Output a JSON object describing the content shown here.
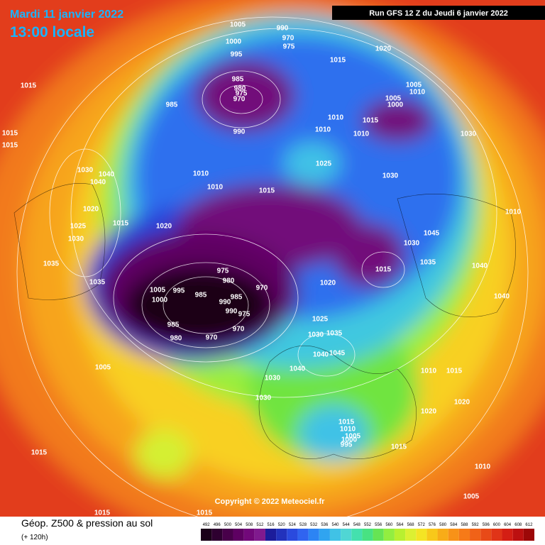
{
  "header": {
    "date": "Mardi 11 janvier 2022",
    "time": "13:00 locale",
    "run": "Run GFS 12 Z du Jeudi 6 janvier 2022"
  },
  "copyright": "Copyright © 2022 Meteociel.fr",
  "legend": {
    "title": "Géop. Z500 & pression au sol",
    "subtitle": "(+ 120h)",
    "ticks": [
      492,
      496,
      500,
      504,
      508,
      512,
      516,
      520,
      524,
      528,
      532,
      536,
      540,
      544,
      548,
      552,
      556,
      560,
      564,
      568,
      572,
      576,
      580,
      584,
      588,
      592,
      596,
      600,
      604,
      608,
      612
    ],
    "colors": [
      "#1a0018",
      "#2e0030",
      "#48004a",
      "#5e0062",
      "#72087a",
      "#801a8e",
      "#1c1c9a",
      "#2232bc",
      "#2a4ade",
      "#3064f0",
      "#2c84f4",
      "#30a4f0",
      "#40c2e6",
      "#50d6d4",
      "#44e0ae",
      "#48e282",
      "#66e454",
      "#92ee40",
      "#b8f030",
      "#dcf032",
      "#f4e424",
      "#f8c81a",
      "#f8ac18",
      "#f89218",
      "#f67a18",
      "#f06218",
      "#e84a18",
      "#e03418",
      "#d41e14",
      "#bc1010",
      "#9c0808"
    ]
  },
  "isobar_labels": [
    1005,
    990,
    970,
    975,
    1000,
    995,
    1015,
    1020,
    1015,
    985,
    980,
    975,
    970,
    985,
    990,
    1005,
    1000,
    1005,
    1010,
    1010,
    1010,
    1015,
    1010,
    1030,
    1015,
    1015,
    1030,
    1040,
    1040,
    1010,
    1025,
    1030,
    1010,
    1015,
    1020,
    1010,
    1015,
    1025,
    1020,
    1045,
    1030,
    1030,
    1035,
    1040,
    1035,
    1015,
    975,
    980,
    1035,
    1020,
    970,
    1005,
    995,
    985,
    1000,
    985,
    990,
    990,
    975,
    985,
    970,
    970,
    980,
    1025,
    1030,
    1035,
    1040,
    1045,
    1040,
    1010,
    1015,
    1030,
    1005,
    1030,
    1020,
    1020,
    1015,
    1010,
    1005,
    1000,
    995,
    1015,
    1015,
    1010,
    1005,
    1015,
    1015,
    1040
  ]
}
